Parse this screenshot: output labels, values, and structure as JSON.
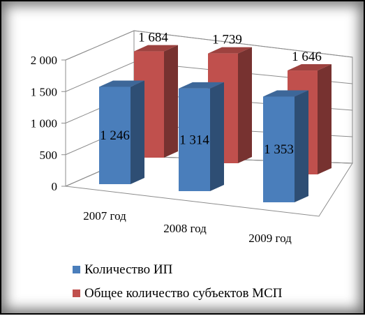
{
  "chart_data": {
    "type": "bar",
    "style": "3d-clustered-column",
    "categories": [
      "2007 год",
      "2008 год",
      "2009 год"
    ],
    "series": [
      {
        "name": "Количество ИП",
        "values": [
          1246,
          1314,
          1353
        ],
        "labels": [
          "1 246",
          "1 314",
          "1 353"
        ],
        "color": "#4a7ebb"
      },
      {
        "name": "Общее количество субъектов МСП",
        "values": [
          1684,
          1739,
          1646
        ],
        "labels": [
          "1 684",
          "1 739",
          "1 646"
        ],
        "color": "#c0504d"
      }
    ],
    "y_ticks": [
      {
        "value": 0,
        "label": "0"
      },
      {
        "value": 500,
        "label": "500"
      },
      {
        "value": 1000,
        "label": "1 000"
      },
      {
        "value": 1500,
        "label": "1 500"
      },
      {
        "value": 2000,
        "label": "2 000"
      }
    ],
    "ylim": [
      0,
      2000
    ],
    "grid": true,
    "legend_position": "bottom",
    "title": "",
    "xlabel": "",
    "ylabel": ""
  }
}
